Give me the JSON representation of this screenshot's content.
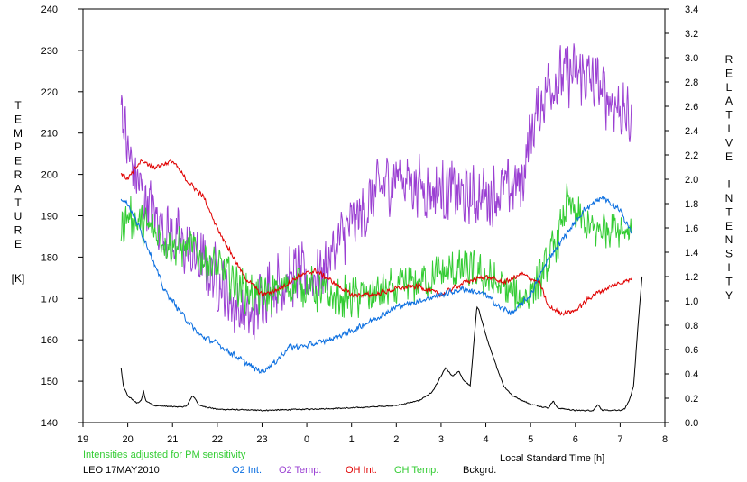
{
  "chart_data": {
    "type": "line",
    "note": "Intensities adjusted for PM sensitivity",
    "station_label": "LEO 17MAY2010",
    "xlabel": "Local Standard Time [h]",
    "ylabel_left_letters": [
      "T",
      "E",
      "M",
      "P",
      "E",
      "R",
      "A",
      "T",
      "U",
      "R",
      "E"
    ],
    "ylabel_left_unit": "[K]",
    "ylabel_right_letters": [
      "R",
      "E",
      "L",
      "A",
      "T",
      "I",
      "V",
      "E",
      "",
      "I",
      "N",
      "T",
      "E",
      "N",
      "S",
      "I",
      "T",
      "Y"
    ],
    "x_ticks": [
      {
        "v": 19,
        "label": "19"
      },
      {
        "v": 20,
        "label": "20"
      },
      {
        "v": 21,
        "label": "21"
      },
      {
        "v": 22,
        "label": "22"
      },
      {
        "v": 23,
        "label": "23"
      },
      {
        "v": 24,
        "label": "0"
      },
      {
        "v": 25,
        "label": "1"
      },
      {
        "v": 26,
        "label": "2"
      },
      {
        "v": 27,
        "label": "3"
      },
      {
        "v": 28,
        "label": "4"
      },
      {
        "v": 29,
        "label": "5"
      },
      {
        "v": 30,
        "label": "6"
      },
      {
        "v": 31,
        "label": "7"
      },
      {
        "v": 32,
        "label": "8"
      }
    ],
    "xlim": [
      19,
      32
    ],
    "ylim_left": [
      140,
      240
    ],
    "y_ticks_left": [
      140,
      150,
      160,
      170,
      180,
      190,
      200,
      210,
      220,
      230,
      240
    ],
    "ylim_right": [
      0.0,
      3.4
    ],
    "y_ticks_right": [
      "0.0",
      "0.2",
      "0.4",
      "0.6",
      "0.8",
      "1.0",
      "1.2",
      "1.4",
      "1.6",
      "1.8",
      "2.0",
      "2.2",
      "2.4",
      "2.6",
      "2.8",
      "3.0",
      "3.2",
      "3.4"
    ],
    "grid": false,
    "legend_position": "bottom",
    "series": [
      {
        "name": "O2 Int.",
        "color": "#0a6ee0",
        "axis": "right",
        "noise": 0.03,
        "x": [
          19.85,
          20.0,
          20.2,
          20.5,
          20.8,
          21.0,
          21.3,
          21.6,
          22.0,
          22.4,
          22.8,
          23.0,
          23.3,
          23.6,
          24.0,
          24.5,
          25.0,
          25.5,
          26.0,
          26.5,
          27.0,
          27.5,
          28.0,
          28.3,
          28.6,
          29.0,
          29.4,
          29.8,
          30.2,
          30.6,
          31.0,
          31.25
        ],
        "y": [
          1.85,
          1.8,
          1.65,
          1.4,
          1.1,
          1.0,
          0.85,
          0.72,
          0.65,
          0.55,
          0.45,
          0.42,
          0.5,
          0.62,
          0.63,
          0.68,
          0.75,
          0.85,
          0.95,
          1.0,
          1.05,
          1.1,
          1.05,
          0.95,
          0.9,
          1.05,
          1.35,
          1.55,
          1.75,
          1.85,
          1.75,
          1.55
        ]
      },
      {
        "name": "O2 Temp.",
        "color": "#9a3fd2",
        "axis": "left",
        "noise": 9,
        "x": [
          19.85,
          20.0,
          20.3,
          20.6,
          21.0,
          21.5,
          22.0,
          22.4,
          22.8,
          23.0,
          23.4,
          23.8,
          24.0,
          24.4,
          24.8,
          25.2,
          25.6,
          26.0,
          26.4,
          26.8,
          27.2,
          27.6,
          28.0,
          28.4,
          28.8,
          29.0,
          29.4,
          29.8,
          30.2,
          30.6,
          31.0,
          31.25
        ],
        "y": [
          218,
          205,
          196,
          190,
          185,
          180,
          175,
          168,
          164,
          172,
          174,
          176,
          174,
          178,
          185,
          190,
          196,
          200,
          198,
          196,
          196,
          194,
          195,
          196,
          198,
          210,
          222,
          224,
          224,
          220,
          216,
          212
        ]
      },
      {
        "name": "OH Int.",
        "color": "#e00000",
        "axis": "right",
        "noise": 0.025,
        "x": [
          19.85,
          20.0,
          20.3,
          20.6,
          21.0,
          21.3,
          21.7,
          22.0,
          22.3,
          22.6,
          23.0,
          23.4,
          23.8,
          24.2,
          24.6,
          25.0,
          25.5,
          26.0,
          26.5,
          27.0,
          27.5,
          28.0,
          28.4,
          28.8,
          29.2,
          29.4,
          29.7,
          30.0,
          30.4,
          30.8,
          31.25
        ],
        "y": [
          2.05,
          2.0,
          2.15,
          2.1,
          2.15,
          2.0,
          1.85,
          1.6,
          1.4,
          1.2,
          1.05,
          1.1,
          1.2,
          1.25,
          1.15,
          1.05,
          1.05,
          1.1,
          1.12,
          1.05,
          1.15,
          1.2,
          1.15,
          1.22,
          1.15,
          0.95,
          0.9,
          0.92,
          1.05,
          1.12,
          1.18
        ]
      },
      {
        "name": "OH Temp.",
        "color": "#33cc33",
        "axis": "left",
        "noise": 6,
        "x": [
          19.85,
          20.0,
          20.3,
          20.6,
          21.0,
          21.4,
          21.8,
          22.2,
          22.6,
          23.0,
          23.4,
          23.8,
          24.2,
          24.6,
          25.0,
          25.5,
          26.0,
          26.5,
          27.0,
          27.5,
          28.0,
          28.4,
          28.8,
          29.2,
          29.6,
          29.8,
          30.0,
          30.4,
          30.8,
          31.25
        ],
        "y": [
          187,
          190,
          188,
          186,
          183,
          182,
          179,
          176,
          172,
          170,
          172,
          174,
          172,
          170,
          170,
          171,
          172,
          174,
          176,
          177,
          175,
          172,
          170,
          174,
          184,
          193,
          190,
          186,
          188,
          187
        ]
      },
      {
        "name": "Bckgrd.",
        "color": "#000000",
        "axis": "right",
        "noise": 0.006,
        "x": [
          19.85,
          19.9,
          20.0,
          20.2,
          20.3,
          20.35,
          20.4,
          20.6,
          21.0,
          21.3,
          21.45,
          21.5,
          21.6,
          22.0,
          23.0,
          24.0,
          25.0,
          25.5,
          26.0,
          26.5,
          26.8,
          27.0,
          27.1,
          27.25,
          27.4,
          27.5,
          27.65,
          27.8,
          27.85,
          28.0,
          28.15,
          28.4,
          28.6,
          29.0,
          29.4,
          29.5,
          29.6,
          30.0,
          30.4,
          30.5,
          30.6,
          31.0,
          31.1,
          31.2,
          31.3,
          31.4,
          31.5
        ],
        "y": [
          0.45,
          0.3,
          0.22,
          0.16,
          0.18,
          0.26,
          0.18,
          0.14,
          0.13,
          0.13,
          0.22,
          0.2,
          0.14,
          0.11,
          0.1,
          0.11,
          0.12,
          0.13,
          0.14,
          0.18,
          0.25,
          0.38,
          0.45,
          0.38,
          0.42,
          0.35,
          0.3,
          0.95,
          0.92,
          0.72,
          0.55,
          0.3,
          0.22,
          0.15,
          0.12,
          0.18,
          0.12,
          0.1,
          0.1,
          0.15,
          0.1,
          0.1,
          0.11,
          0.18,
          0.3,
          0.8,
          1.25
        ]
      }
    ]
  }
}
